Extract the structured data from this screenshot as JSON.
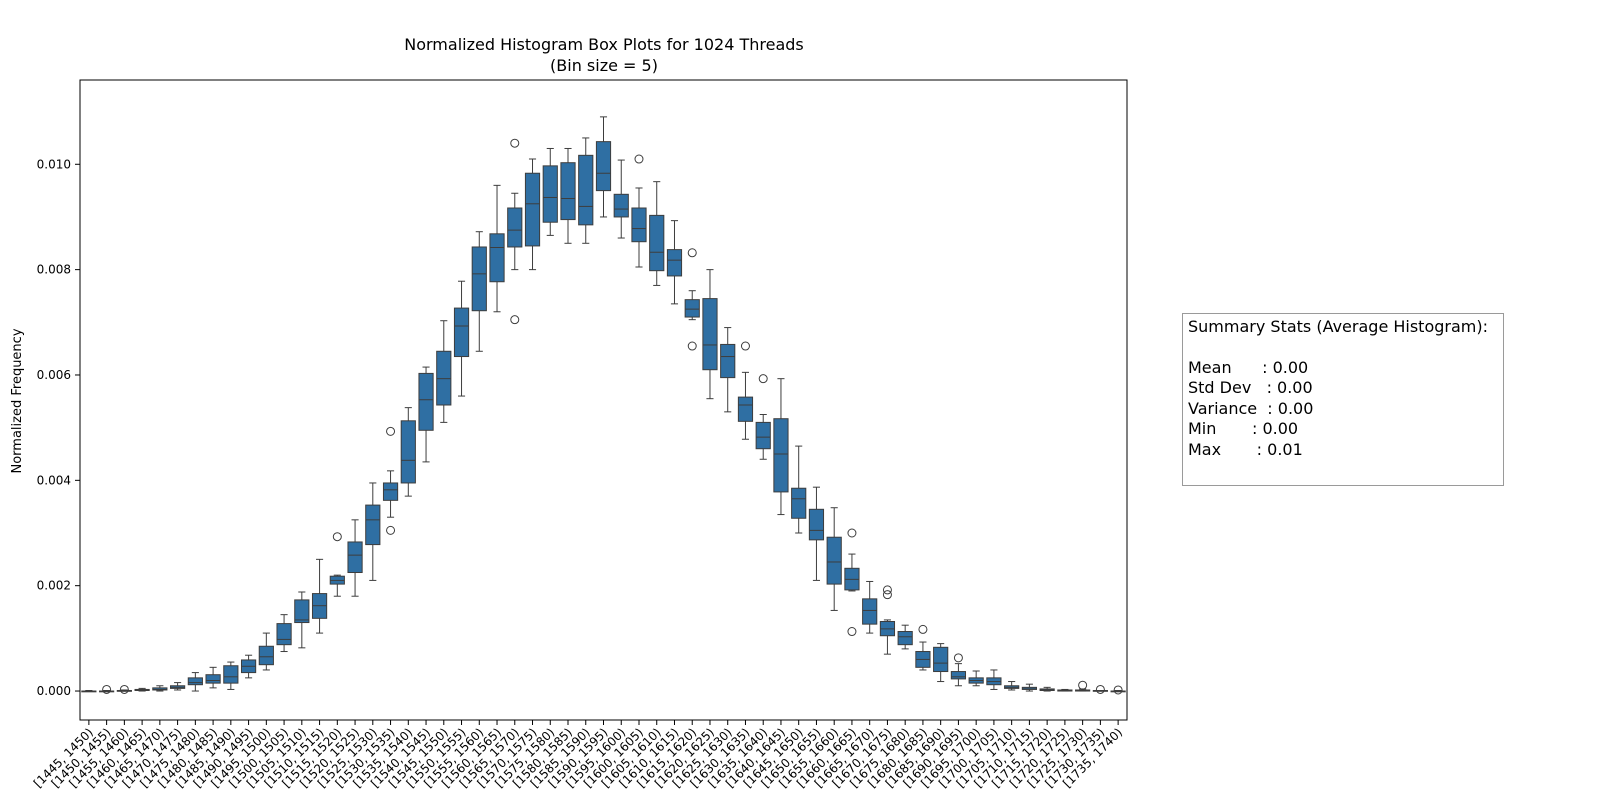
{
  "chart_data": {
    "type": "box",
    "title": "Normalized Histogram Box Plots for 1024 Threads",
    "subtitle": "(Bin size = 5)",
    "xlabel": "",
    "ylabel": "Normalized Frequency",
    "ylim": [
      -0.00055,
      0.0116
    ],
    "yticks": [
      "0.000",
      "0.002",
      "0.004",
      "0.006",
      "0.008",
      "0.010"
    ],
    "box_color": "#2f6fa3",
    "grid": false,
    "categories": [
      "[1445, 1450)",
      "[1450, 1455)",
      "[1455, 1460)",
      "[1460, 1465)",
      "[1465, 1470)",
      "[1470, 1475)",
      "[1475, 1480)",
      "[1480, 1485)",
      "[1485, 1490)",
      "[1490, 1495)",
      "[1495, 1500)",
      "[1500, 1505)",
      "[1505, 1510)",
      "[1510, 1515)",
      "[1515, 1520)",
      "[1520, 1525)",
      "[1525, 1530)",
      "[1530, 1535)",
      "[1535, 1540)",
      "[1540, 1545)",
      "[1545, 1550)",
      "[1550, 1555)",
      "[1555, 1560)",
      "[1560, 1565)",
      "[1565, 1570)",
      "[1570, 1575)",
      "[1575, 1580)",
      "[1580, 1585)",
      "[1585, 1590)",
      "[1590, 1595)",
      "[1595, 1600)",
      "[1600, 1605)",
      "[1605, 1610)",
      "[1610, 1615)",
      "[1615, 1620)",
      "[1620, 1625)",
      "[1625, 1630)",
      "[1630, 1635)",
      "[1635, 1640)",
      "[1640, 1645)",
      "[1645, 1650)",
      "[1650, 1655)",
      "[1655, 1660)",
      "[1660, 1665)",
      "[1665, 1670)",
      "[1670, 1675)",
      "[1675, 1680)",
      "[1680, 1685)",
      "[1685, 1690)",
      "[1690, 1695)",
      "[1695, 1700)",
      "[1700, 1705)",
      "[1705, 1710)",
      "[1710, 1715)",
      "[1715, 1720)",
      "[1720, 1725)",
      "[1725, 1730)",
      "[1730, 1735)",
      "[1735, 1740)"
    ],
    "boxes": [
      {
        "wlo": 0.0,
        "q1": 0.0,
        "med": 0.0,
        "q3": 0.0,
        "whi": 1e-05,
        "out": []
      },
      {
        "wlo": 0.0,
        "q1": 0.0,
        "med": 0.0,
        "q3": 0.0,
        "whi": 1e-05,
        "out": [
          3e-05
        ]
      },
      {
        "wlo": 0.0,
        "q1": 0.0,
        "med": 0.0,
        "q3": 1e-05,
        "whi": 2e-05,
        "out": [
          3e-05
        ]
      },
      {
        "wlo": 0.0,
        "q1": 1e-05,
        "med": 2e-05,
        "q3": 3e-05,
        "whi": 5e-05,
        "out": []
      },
      {
        "wlo": 0.0,
        "q1": 2e-05,
        "med": 3e-05,
        "q3": 6e-05,
        "whi": 0.0001,
        "out": []
      },
      {
        "wlo": 2e-05,
        "q1": 5e-05,
        "med": 7e-05,
        "q3": 0.0001,
        "whi": 0.00016,
        "out": []
      },
      {
        "wlo": 0.0,
        "q1": 0.00012,
        "med": 0.00016,
        "q3": 0.00025,
        "whi": 0.00035,
        "out": []
      },
      {
        "wlo": 6e-05,
        "q1": 0.00015,
        "med": 0.0002,
        "q3": 0.00031,
        "whi": 0.00045,
        "out": []
      },
      {
        "wlo": 3e-05,
        "q1": 0.00015,
        "med": 0.00027,
        "q3": 0.00048,
        "whi": 0.00055,
        "out": []
      },
      {
        "wlo": 0.00025,
        "q1": 0.00035,
        "med": 0.00047,
        "q3": 0.00059,
        "whi": 0.00068,
        "out": []
      },
      {
        "wlo": 0.0004,
        "q1": 0.0005,
        "med": 0.00065,
        "q3": 0.00085,
        "whi": 0.0011,
        "out": []
      },
      {
        "wlo": 0.00075,
        "q1": 0.00088,
        "med": 0.00098,
        "q3": 0.00128,
        "whi": 0.00145,
        "out": []
      },
      {
        "wlo": 0.00082,
        "q1": 0.0013,
        "med": 0.00135,
        "q3": 0.00173,
        "whi": 0.00188,
        "out": []
      },
      {
        "wlo": 0.0011,
        "q1": 0.00138,
        "med": 0.00162,
        "q3": 0.00185,
        "whi": 0.0025,
        "out": []
      },
      {
        "wlo": 0.0018,
        "q1": 0.00203,
        "med": 0.0021,
        "q3": 0.00218,
        "whi": 0.0022,
        "out": [
          0.00293
        ]
      },
      {
        "wlo": 0.0018,
        "q1": 0.00225,
        "med": 0.00258,
        "q3": 0.00283,
        "whi": 0.00325,
        "out": []
      },
      {
        "wlo": 0.0021,
        "q1": 0.00278,
        "med": 0.00325,
        "q3": 0.00353,
        "whi": 0.00395,
        "out": []
      },
      {
        "wlo": 0.0033,
        "q1": 0.00362,
        "med": 0.00382,
        "q3": 0.00395,
        "whi": 0.00418,
        "out": [
          0.00493,
          0.00305
        ]
      },
      {
        "wlo": 0.0037,
        "q1": 0.00395,
        "med": 0.00438,
        "q3": 0.00513,
        "whi": 0.00538,
        "out": []
      },
      {
        "wlo": 0.00435,
        "q1": 0.00495,
        "med": 0.00553,
        "q3": 0.00603,
        "whi": 0.00615,
        "out": []
      },
      {
        "wlo": 0.0051,
        "q1": 0.00543,
        "med": 0.00593,
        "q3": 0.00645,
        "whi": 0.00703,
        "out": []
      },
      {
        "wlo": 0.0056,
        "q1": 0.00635,
        "med": 0.00693,
        "q3": 0.00727,
        "whi": 0.00778,
        "out": []
      },
      {
        "wlo": 0.00645,
        "q1": 0.00722,
        "med": 0.00792,
        "q3": 0.00843,
        "whi": 0.00872,
        "out": []
      },
      {
        "wlo": 0.0072,
        "q1": 0.00777,
        "med": 0.00842,
        "q3": 0.00868,
        "whi": 0.0096,
        "out": []
      },
      {
        "wlo": 0.008,
        "q1": 0.00843,
        "med": 0.00875,
        "q3": 0.00917,
        "whi": 0.00945,
        "out": [
          0.0104,
          0.00705
        ]
      },
      {
        "wlo": 0.008,
        "q1": 0.00845,
        "med": 0.00925,
        "q3": 0.00983,
        "whi": 0.0101,
        "out": []
      },
      {
        "wlo": 0.00865,
        "q1": 0.0089,
        "med": 0.00937,
        "q3": 0.00997,
        "whi": 0.0103,
        "out": []
      },
      {
        "wlo": 0.0085,
        "q1": 0.00895,
        "med": 0.00935,
        "q3": 0.01003,
        "whi": 0.0103,
        "out": []
      },
      {
        "wlo": 0.0085,
        "q1": 0.00885,
        "med": 0.0092,
        "q3": 0.01017,
        "whi": 0.0105,
        "out": []
      },
      {
        "wlo": 0.009,
        "q1": 0.0095,
        "med": 0.00983,
        "q3": 0.01043,
        "whi": 0.0109,
        "out": []
      },
      {
        "wlo": 0.0086,
        "q1": 0.009,
        "med": 0.00915,
        "q3": 0.00943,
        "whi": 0.01008,
        "out": []
      },
      {
        "wlo": 0.00805,
        "q1": 0.00853,
        "med": 0.00878,
        "q3": 0.00917,
        "whi": 0.00955,
        "out": [
          0.0101
        ]
      },
      {
        "wlo": 0.0077,
        "q1": 0.00798,
        "med": 0.00833,
        "q3": 0.00903,
        "whi": 0.00967,
        "out": []
      },
      {
        "wlo": 0.00735,
        "q1": 0.00788,
        "med": 0.00818,
        "q3": 0.00838,
        "whi": 0.00893,
        "out": []
      },
      {
        "wlo": 0.00705,
        "q1": 0.0071,
        "med": 0.00725,
        "q3": 0.00743,
        "whi": 0.0076,
        "out": [
          0.00832,
          0.00655
        ]
      },
      {
        "wlo": 0.00555,
        "q1": 0.0061,
        "med": 0.00657,
        "q3": 0.00745,
        "whi": 0.008,
        "out": []
      },
      {
        "wlo": 0.0053,
        "q1": 0.00595,
        "med": 0.00635,
        "q3": 0.00658,
        "whi": 0.0069,
        "out": []
      },
      {
        "wlo": 0.00478,
        "q1": 0.00512,
        "med": 0.00543,
        "q3": 0.00558,
        "whi": 0.00605,
        "out": [
          0.00655
        ]
      },
      {
        "wlo": 0.0044,
        "q1": 0.0046,
        "med": 0.00482,
        "q3": 0.0051,
        "whi": 0.00525,
        "out": [
          0.00593
        ]
      },
      {
        "wlo": 0.00335,
        "q1": 0.00378,
        "med": 0.0045,
        "q3": 0.00517,
        "whi": 0.00593,
        "out": []
      },
      {
        "wlo": 0.003,
        "q1": 0.00328,
        "med": 0.00365,
        "q3": 0.00385,
        "whi": 0.00465,
        "out": []
      },
      {
        "wlo": 0.0021,
        "q1": 0.00287,
        "med": 0.00305,
        "q3": 0.00345,
        "whi": 0.00387,
        "out": []
      },
      {
        "wlo": 0.00153,
        "q1": 0.00203,
        "med": 0.00245,
        "q3": 0.00292,
        "whi": 0.00348,
        "out": []
      },
      {
        "wlo": 0.0019,
        "q1": 0.00192,
        "med": 0.00212,
        "q3": 0.00233,
        "whi": 0.0026,
        "out": [
          0.003,
          0.00113
        ]
      },
      {
        "wlo": 0.0011,
        "q1": 0.00127,
        "med": 0.00153,
        "q3": 0.00175,
        "whi": 0.00208,
        "out": []
      },
      {
        "wlo": 0.0007,
        "q1": 0.00105,
        "med": 0.00118,
        "q3": 0.00132,
        "whi": 0.00135,
        "out": [
          0.00192,
          0.00183
        ]
      },
      {
        "wlo": 0.0008,
        "q1": 0.00088,
        "med": 0.00103,
        "q3": 0.00113,
        "whi": 0.00125,
        "out": []
      },
      {
        "wlo": 0.0004,
        "q1": 0.00045,
        "med": 0.0006,
        "q3": 0.00075,
        "whi": 0.00093,
        "out": [
          0.00117
        ]
      },
      {
        "wlo": 0.00018,
        "q1": 0.00037,
        "med": 0.00053,
        "q3": 0.00083,
        "whi": 0.0009,
        "out": []
      },
      {
        "wlo": 0.0001,
        "q1": 0.00023,
        "med": 0.00027,
        "q3": 0.00037,
        "whi": 0.00052,
        "out": [
          0.00063
        ]
      },
      {
        "wlo": 0.0001,
        "q1": 0.00015,
        "med": 0.0002,
        "q3": 0.00025,
        "whi": 0.00038,
        "out": []
      },
      {
        "wlo": 3e-05,
        "q1": 0.00012,
        "med": 0.00018,
        "q3": 0.00025,
        "whi": 0.0004,
        "out": []
      },
      {
        "wlo": 2e-05,
        "q1": 5e-05,
        "med": 7e-05,
        "q3": 0.0001,
        "whi": 0.00018,
        "out": []
      },
      {
        "wlo": 0.0,
        "q1": 3e-05,
        "med": 4e-05,
        "q3": 7e-05,
        "whi": 0.00013,
        "out": []
      },
      {
        "wlo": 0.0,
        "q1": 1e-05,
        "med": 2e-05,
        "q3": 4e-05,
        "whi": 7e-05,
        "out": []
      },
      {
        "wlo": 0.0,
        "q1": 0.0,
        "med": 1e-05,
        "q3": 2e-05,
        "whi": 3e-05,
        "out": []
      },
      {
        "wlo": 0.0,
        "q1": 0.0,
        "med": 1e-05,
        "q3": 2e-05,
        "whi": 4e-05,
        "out": [
          0.00011
        ]
      },
      {
        "wlo": 0.0,
        "q1": 0.0,
        "med": 0.0,
        "q3": 1e-05,
        "whi": 1e-05,
        "out": [
          3e-05
        ]
      },
      {
        "wlo": 0.0,
        "q1": 0.0,
        "med": 0.0,
        "q3": 0.0,
        "whi": 1e-05,
        "out": [
          2e-05
        ]
      }
    ]
  },
  "summary": {
    "title": "Summary Stats (Average Histogram):",
    "lines": [
      "Mean      : 0.00",
      "Std Dev   : 0.00",
      "Variance  : 0.00",
      "Min       : 0.00",
      "Max       : 0.01"
    ]
  }
}
